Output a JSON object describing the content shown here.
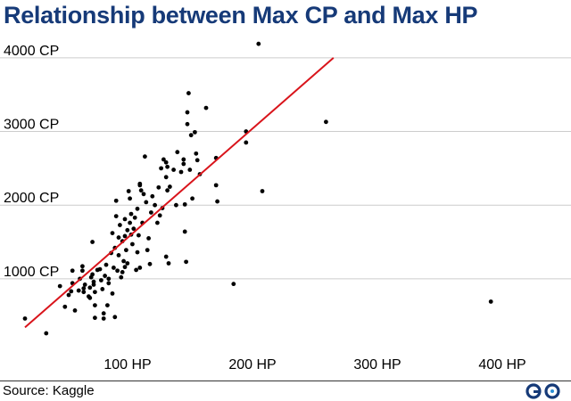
{
  "header": {
    "title": "Relationship between Max CP and Max HP"
  },
  "footer": {
    "source": "Source: Kaggle",
    "logo_icon": "go-logo-icon"
  },
  "chart_data": {
    "type": "scatter",
    "title": "Relationship between Max CP and Max HP",
    "xlabel": "",
    "ylabel": "",
    "x_unit": "HP",
    "y_unit": "CP",
    "xlim": [
      0,
      420
    ],
    "ylim": [
      0,
      4500
    ],
    "x_ticks": [
      100,
      200,
      300,
      400
    ],
    "y_ticks": [
      1000,
      2000,
      3000,
      4000
    ],
    "x_tick_labels": [
      "100 HP",
      "200 HP",
      "300 HP",
      "400 HP"
    ],
    "y_tick_labels": [
      "1000 CP",
      "2000 CP",
      "3000 CP",
      "4000 CP"
    ],
    "grid": {
      "horizontal": true,
      "vertical": false
    },
    "colors": {
      "points": "#000000",
      "trend": "#d9141b",
      "grid": "#cccccc",
      "title": "#163a78"
    },
    "trend_line": {
      "x": [
        20,
        267
      ],
      "y": [
        340,
        4000
      ]
    },
    "points": [
      [
        20,
        460
      ],
      [
        37,
        260
      ],
      [
        48,
        900
      ],
      [
        52,
        620
      ],
      [
        55,
        780
      ],
      [
        57,
        830
      ],
      [
        58,
        1110
      ],
      [
        58,
        940
      ],
      [
        60,
        570
      ],
      [
        63,
        840
      ],
      [
        64,
        1000
      ],
      [
        66,
        1170
      ],
      [
        66,
        1110
      ],
      [
        67,
        870
      ],
      [
        67,
        820
      ],
      [
        68,
        920
      ],
      [
        71,
        760
      ],
      [
        72,
        880
      ],
      [
        72,
        740
      ],
      [
        73,
        1020
      ],
      [
        74,
        1500
      ],
      [
        74,
        1060
      ],
      [
        75,
        960
      ],
      [
        75,
        920
      ],
      [
        76,
        820
      ],
      [
        76,
        640
      ],
      [
        76,
        470
      ],
      [
        78,
        1120
      ],
      [
        80,
        1130
      ],
      [
        81,
        980
      ],
      [
        82,
        860
      ],
      [
        83,
        530
      ],
      [
        83,
        460
      ],
      [
        84,
        1040
      ],
      [
        85,
        1190
      ],
      [
        86,
        640
      ],
      [
        87,
        940
      ],
      [
        87,
        1000
      ],
      [
        89,
        1350
      ],
      [
        90,
        1620
      ],
      [
        90,
        800
      ],
      [
        91,
        1150
      ],
      [
        92,
        1420
      ],
      [
        92,
        480
      ],
      [
        93,
        2060
      ],
      [
        93,
        1850
      ],
      [
        94,
        1110
      ],
      [
        95,
        1560
      ],
      [
        95,
        1320
      ],
      [
        96,
        1730
      ],
      [
        97,
        1020
      ],
      [
        98,
        1510
      ],
      [
        98,
        1090
      ],
      [
        99,
        1240
      ],
      [
        100,
        1810
      ],
      [
        100,
        1580
      ],
      [
        100,
        1160
      ],
      [
        101,
        1390
      ],
      [
        102,
        1660
      ],
      [
        102,
        1210
      ],
      [
        103,
        2190
      ],
      [
        104,
        2090
      ],
      [
        104,
        1760
      ],
      [
        105,
        1600
      ],
      [
        105,
        1880
      ],
      [
        106,
        1470
      ],
      [
        107,
        1680
      ],
      [
        108,
        1830
      ],
      [
        109,
        1120
      ],
      [
        110,
        1950
      ],
      [
        110,
        1360
      ],
      [
        111,
        1590
      ],
      [
        112,
        2290
      ],
      [
        112,
        2270
      ],
      [
        112,
        1150
      ],
      [
        113,
        2200
      ],
      [
        114,
        1760
      ],
      [
        115,
        2150
      ],
      [
        116,
        2660
      ],
      [
        117,
        2040
      ],
      [
        118,
        1390
      ],
      [
        119,
        1550
      ],
      [
        120,
        1200
      ],
      [
        121,
        1900
      ],
      [
        122,
        2120
      ],
      [
        124,
        2000
      ],
      [
        126,
        1760
      ],
      [
        127,
        2240
      ],
      [
        128,
        1860
      ],
      [
        129,
        2500
      ],
      [
        130,
        1960
      ],
      [
        131,
        2620
      ],
      [
        133,
        2580
      ],
      [
        133,
        2380
      ],
      [
        133,
        1300
      ],
      [
        134,
        2520
      ],
      [
        134,
        2200
      ],
      [
        135,
        1210
      ],
      [
        136,
        2250
      ],
      [
        139,
        2480
      ],
      [
        141,
        2000
      ],
      [
        142,
        2720
      ],
      [
        145,
        2450
      ],
      [
        147,
        2620
      ],
      [
        147,
        2560
      ],
      [
        148,
        2010
      ],
      [
        148,
        1640
      ],
      [
        149,
        1230
      ],
      [
        150,
        3100
      ],
      [
        150,
        3260
      ],
      [
        151,
        3520
      ],
      [
        152,
        2480
      ],
      [
        153,
        2950
      ],
      [
        154,
        2090
      ],
      [
        156,
        2990
      ],
      [
        157,
        2700
      ],
      [
        158,
        2610
      ],
      [
        160,
        2420
      ],
      [
        165,
        3320
      ],
      [
        173,
        2640
      ],
      [
        173,
        2270
      ],
      [
        174,
        2050
      ],
      [
        187,
        930
      ],
      [
        197,
        3000
      ],
      [
        197,
        2850
      ],
      [
        210,
        2190
      ],
      [
        207,
        4190
      ],
      [
        261,
        3130
      ],
      [
        393,
        690
      ]
    ]
  }
}
